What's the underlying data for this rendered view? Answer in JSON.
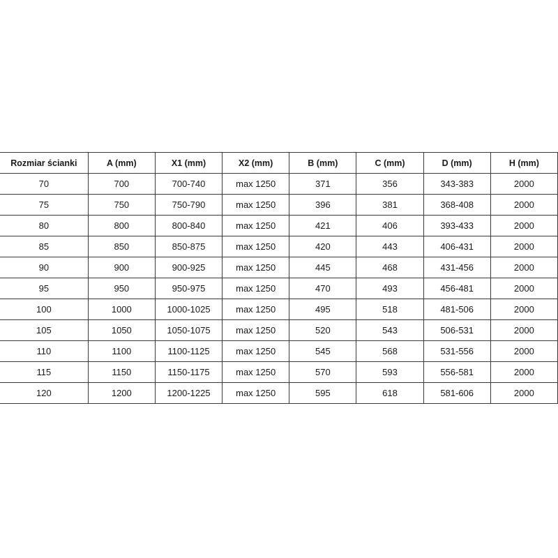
{
  "table": {
    "headers": [
      "Rozmiar ścianki",
      "A (mm)",
      "X1 (mm)",
      "X2 (mm)",
      "B (mm)",
      "C (mm)",
      "D (mm)",
      "H (mm)"
    ],
    "rows": [
      [
        "70",
        "700",
        "700-740",
        "max 1250",
        "371",
        "356",
        "343-383",
        "2000"
      ],
      [
        "75",
        "750",
        "750-790",
        "max 1250",
        "396",
        "381",
        "368-408",
        "2000"
      ],
      [
        "80",
        "800",
        "800-840",
        "max 1250",
        "421",
        "406",
        "393-433",
        "2000"
      ],
      [
        "85",
        "850",
        "850-875",
        "max 1250",
        "420",
        "443",
        "406-431",
        "2000"
      ],
      [
        "90",
        "900",
        "900-925",
        "max 1250",
        "445",
        "468",
        "431-456",
        "2000"
      ],
      [
        "95",
        "950",
        "950-975",
        "max 1250",
        "470",
        "493",
        "456-481",
        "2000"
      ],
      [
        "100",
        "1000",
        "1000-1025",
        "max 1250",
        "495",
        "518",
        "481-506",
        "2000"
      ],
      [
        "105",
        "1050",
        "1050-1075",
        "max 1250",
        "520",
        "543",
        "506-531",
        "2000"
      ],
      [
        "110",
        "1100",
        "1100-1125",
        "max 1250",
        "545",
        "568",
        "531-556",
        "2000"
      ],
      [
        "115",
        "1150",
        "1150-1175",
        "max 1250",
        "570",
        "593",
        "556-581",
        "2000"
      ],
      [
        "120",
        "1200",
        "1200-1225",
        "max 1250",
        "595",
        "618",
        "581-606",
        "2000"
      ]
    ]
  }
}
